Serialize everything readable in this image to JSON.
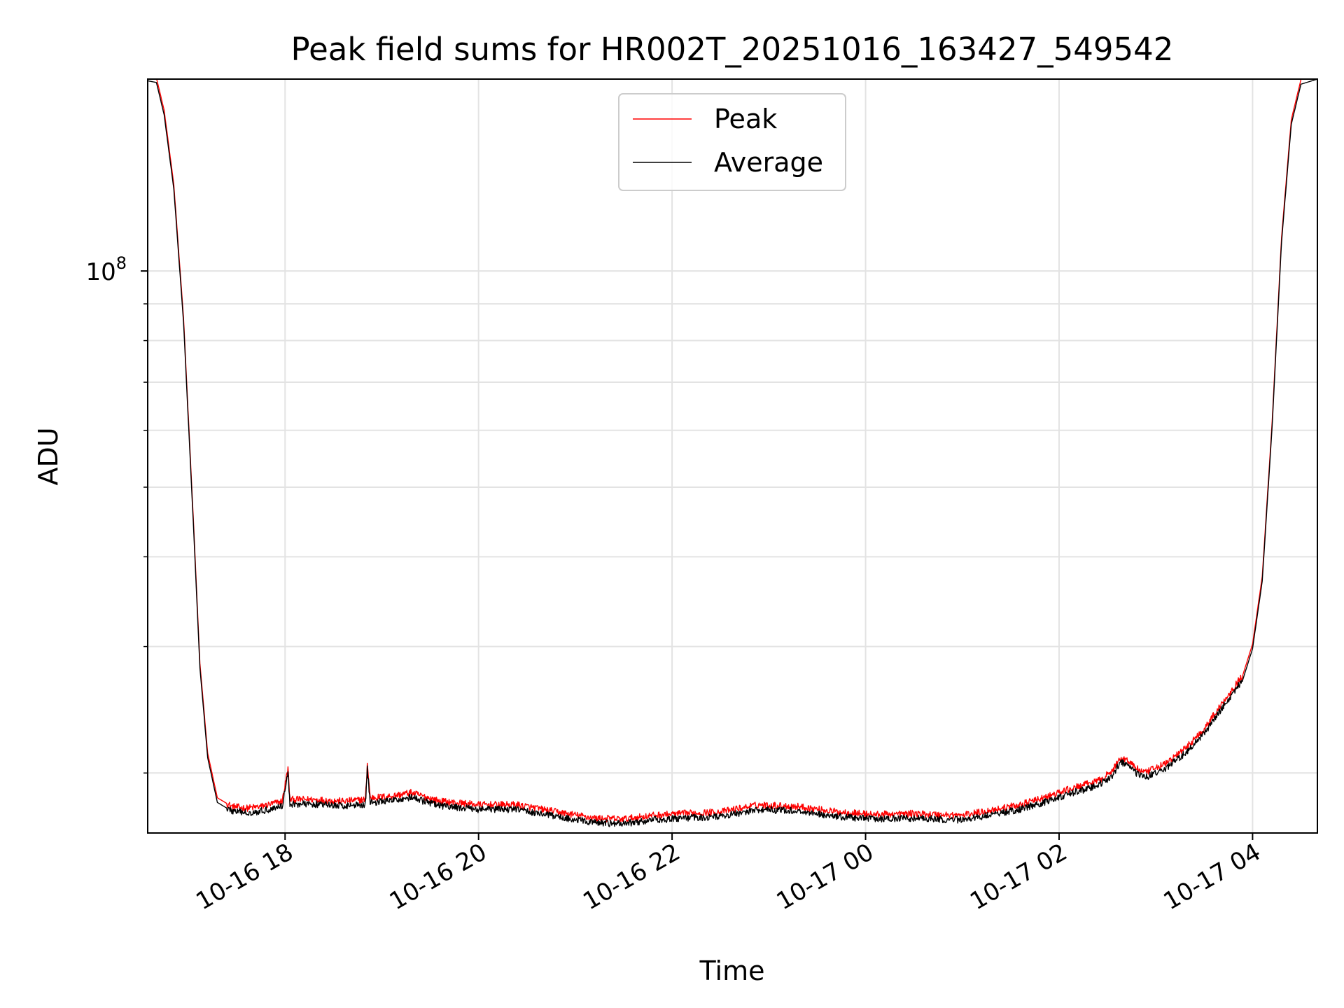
{
  "chart_data": {
    "type": "line",
    "title": "Peak field sums for HR002T_20251016_163427_549542",
    "xlabel": "Time",
    "ylabel": "ADU",
    "yscale": "log",
    "grid": true,
    "legend_position": "upper-center",
    "x_unit": "hours since 2025-10-16 00:00",
    "xlim": [
      16.58,
      28.67
    ],
    "ylim": [
      16500000,
      185000000
    ],
    "x_ticks": [
      {
        "value": 18,
        "label": "10-16 18"
      },
      {
        "value": 20,
        "label": "10-16 20"
      },
      {
        "value": 22,
        "label": "10-16 22"
      },
      {
        "value": 24,
        "label": "10-17 00"
      },
      {
        "value": 26,
        "label": "10-17 02"
      },
      {
        "value": 28,
        "label": "10-17 04"
      }
    ],
    "y_major_ticks": [
      {
        "value": 100000000,
        "base": "10",
        "exp": "8"
      }
    ],
    "y_minor_ticks": [
      20000000,
      30000000,
      40000000,
      50000000,
      60000000,
      70000000,
      80000000,
      90000000
    ],
    "series": [
      {
        "name": "Peak",
        "color": "#ff0000",
        "offset_factor": 1.015,
        "points": [
          [
            16.58,
            184000000
          ],
          [
            16.67,
            183000000
          ],
          [
            16.75,
            165000000
          ],
          [
            16.85,
            130000000
          ],
          [
            16.95,
            85000000
          ],
          [
            17.05,
            45000000
          ],
          [
            17.12,
            28000000
          ],
          [
            17.2,
            21000000
          ],
          [
            17.3,
            18200000
          ],
          [
            17.45,
            17700000
          ],
          [
            17.6,
            17600000
          ],
          [
            17.75,
            17700000
          ],
          [
            17.9,
            17900000
          ],
          [
            17.97,
            18000000
          ],
          [
            18.03,
            20000000
          ],
          [
            18.05,
            18100000
          ],
          [
            18.3,
            18100000
          ],
          [
            18.6,
            18000000
          ],
          [
            18.83,
            18100000
          ],
          [
            18.85,
            20300000
          ],
          [
            18.88,
            18200000
          ],
          [
            19.1,
            18300000
          ],
          [
            19.3,
            18500000
          ],
          [
            19.6,
            18000000
          ],
          [
            20.0,
            17800000
          ],
          [
            20.4,
            17800000
          ],
          [
            20.8,
            17400000
          ],
          [
            21.2,
            17050000
          ],
          [
            21.5,
            17000000
          ],
          [
            21.8,
            17200000
          ],
          [
            22.1,
            17300000
          ],
          [
            22.5,
            17400000
          ],
          [
            22.9,
            17800000
          ],
          [
            23.3,
            17700000
          ],
          [
            23.7,
            17400000
          ],
          [
            24.1,
            17250000
          ],
          [
            24.5,
            17300000
          ],
          [
            25.0,
            17200000
          ],
          [
            25.3,
            17500000
          ],
          [
            25.6,
            17800000
          ],
          [
            25.9,
            18300000
          ],
          [
            26.1,
            18700000
          ],
          [
            26.4,
            19200000
          ],
          [
            26.55,
            19800000
          ],
          [
            26.63,
            20700000
          ],
          [
            26.72,
            20500000
          ],
          [
            26.8,
            20000000
          ],
          [
            26.88,
            19700000
          ],
          [
            27.1,
            20300000
          ],
          [
            27.3,
            21300000
          ],
          [
            27.5,
            22700000
          ],
          [
            27.7,
            24800000
          ],
          [
            27.9,
            27000000
          ],
          [
            28.0,
            29800000
          ],
          [
            28.1,
            37000000
          ],
          [
            28.2,
            60000000
          ],
          [
            28.3,
            110000000
          ],
          [
            28.4,
            160000000
          ],
          [
            28.5,
            182000000
          ],
          [
            28.67,
            185000000
          ]
        ]
      },
      {
        "name": "Average",
        "color": "#000000",
        "offset_factor": 1.0,
        "points": [
          [
            16.58,
            184000000
          ],
          [
            16.67,
            183000000
          ],
          [
            16.75,
            165000000
          ],
          [
            16.85,
            130000000
          ],
          [
            16.95,
            85000000
          ],
          [
            17.05,
            45000000
          ],
          [
            17.12,
            28000000
          ],
          [
            17.2,
            21000000
          ],
          [
            17.3,
            18200000
          ],
          [
            17.45,
            17700000
          ],
          [
            17.6,
            17600000
          ],
          [
            17.75,
            17700000
          ],
          [
            17.9,
            17900000
          ],
          [
            17.97,
            18000000
          ],
          [
            18.03,
            20000000
          ],
          [
            18.05,
            18100000
          ],
          [
            18.3,
            18100000
          ],
          [
            18.6,
            18000000
          ],
          [
            18.83,
            18100000
          ],
          [
            18.85,
            20300000
          ],
          [
            18.88,
            18200000
          ],
          [
            19.1,
            18300000
          ],
          [
            19.3,
            18500000
          ],
          [
            19.6,
            18000000
          ],
          [
            20.0,
            17800000
          ],
          [
            20.4,
            17800000
          ],
          [
            20.8,
            17400000
          ],
          [
            21.2,
            17050000
          ],
          [
            21.5,
            17000000
          ],
          [
            21.8,
            17200000
          ],
          [
            22.1,
            17300000
          ],
          [
            22.5,
            17400000
          ],
          [
            22.9,
            17800000
          ],
          [
            23.3,
            17700000
          ],
          [
            23.7,
            17400000
          ],
          [
            24.1,
            17250000
          ],
          [
            24.5,
            17300000
          ],
          [
            25.0,
            17200000
          ],
          [
            25.3,
            17500000
          ],
          [
            25.6,
            17800000
          ],
          [
            25.9,
            18300000
          ],
          [
            26.1,
            18700000
          ],
          [
            26.4,
            19200000
          ],
          [
            26.55,
            19800000
          ],
          [
            26.63,
            20700000
          ],
          [
            26.72,
            20500000
          ],
          [
            26.8,
            20000000
          ],
          [
            26.88,
            19700000
          ],
          [
            27.1,
            20300000
          ],
          [
            27.3,
            21300000
          ],
          [
            27.5,
            22700000
          ],
          [
            27.7,
            24800000
          ],
          [
            27.9,
            27000000
          ],
          [
            28.0,
            29800000
          ],
          [
            28.1,
            37000000
          ],
          [
            28.2,
            60000000
          ],
          [
            28.3,
            110000000
          ],
          [
            28.4,
            160000000
          ],
          [
            28.5,
            182000000
          ],
          [
            28.67,
            185000000
          ]
        ]
      }
    ]
  }
}
